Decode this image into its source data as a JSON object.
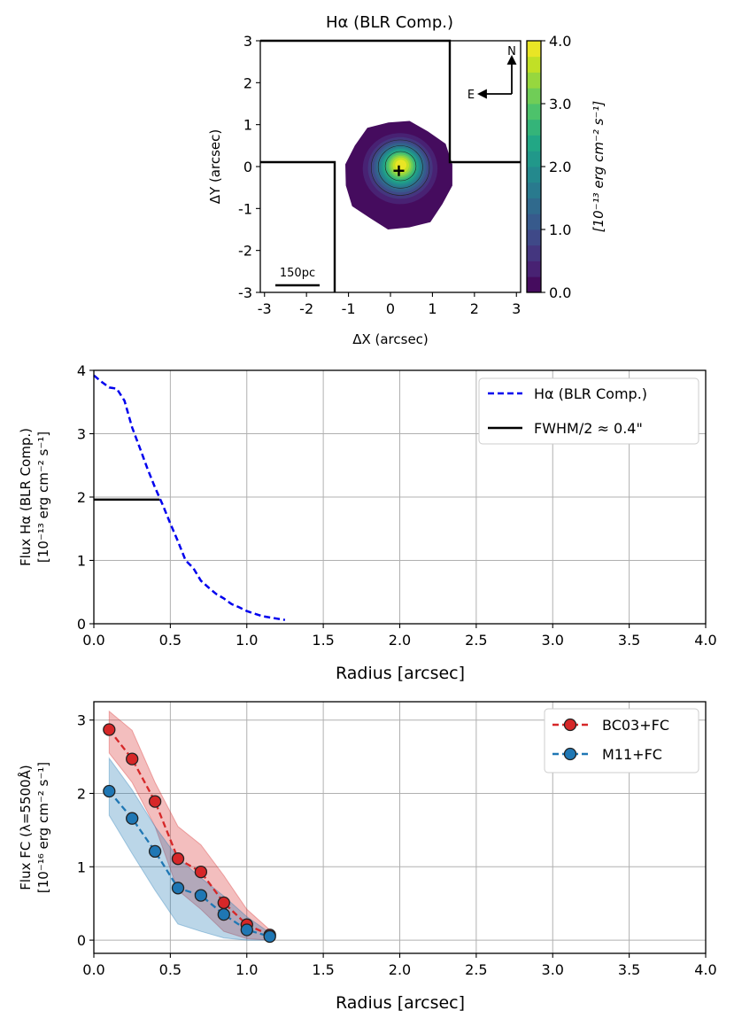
{
  "chart_data": [
    {
      "type": "heatmap",
      "title": "Hα (BLR Comp.)",
      "xlabel": "ΔX (arcsec)",
      "ylabel": "ΔY (arcsec)",
      "xlim": [
        -3.1,
        3.1
      ],
      "ylim": [
        -3,
        3
      ],
      "xticks": [
        "-3",
        "-2",
        "-1",
        "0",
        "1",
        "2",
        "3"
      ],
      "yticks": [
        "-3",
        "-2",
        "-1",
        "0",
        "1",
        "2",
        "3"
      ],
      "colorbar": {
        "label": "[10⁻¹³ erg cm⁻² s⁻¹]",
        "range": [
          0.0,
          4.0
        ],
        "ticks": [
          "0.0",
          "1.0",
          "2.0",
          "3.0",
          "4.0"
        ],
        "levels": 16
      },
      "peak": {
        "x": 0.25,
        "y": 0.05,
        "value": 4.0
      },
      "center_marker": {
        "x": 0.2,
        "y": -0.1
      },
      "compass": {
        "north": "N",
        "east": "E"
      },
      "scale_bar": {
        "label": "150pc"
      },
      "colors": {
        "viridis": [
          "#440154",
          "#482475",
          "#414487",
          "#355f8d",
          "#2a788e",
          "#21908d",
          "#22a884",
          "#42be71",
          "#7ad151",
          "#bddf26",
          "#fde725"
        ]
      }
    },
    {
      "type": "line",
      "xlabel": "Radius [arcsec]",
      "ylabel_line1": "Flux Hα (BLR Comp.)",
      "ylabel_line2": "[10⁻¹³ erg cm⁻² s⁻¹]",
      "xlim": [
        0.0,
        4.0
      ],
      "ylim": [
        0,
        4
      ],
      "xticks": [
        "0.0",
        "0.5",
        "1.0",
        "1.5",
        "2.0",
        "2.5",
        "3.0",
        "3.5",
        "4.0"
      ],
      "yticks": [
        "0",
        "1",
        "2",
        "3",
        "4"
      ],
      "grid": true,
      "legend_position": "top-right",
      "series": [
        {
          "name": "Hα (BLR Comp.)",
          "color": "#0000ee",
          "style": "dashed",
          "x": [
            0.0,
            0.05,
            0.1,
            0.15,
            0.2,
            0.25,
            0.3,
            0.35,
            0.4,
            0.45,
            0.5,
            0.55,
            0.6,
            0.65,
            0.7,
            0.75,
            0.8,
            0.85,
            0.9,
            0.95,
            1.0,
            1.05,
            1.1,
            1.15,
            1.2,
            1.25
          ],
          "y": [
            3.92,
            3.82,
            3.73,
            3.71,
            3.52,
            3.1,
            2.78,
            2.45,
            2.15,
            1.88,
            1.58,
            1.3,
            1.0,
            0.88,
            0.68,
            0.57,
            0.47,
            0.4,
            0.31,
            0.26,
            0.2,
            0.16,
            0.12,
            0.1,
            0.08,
            0.06
          ]
        },
        {
          "name": "FWHM/2 ≈ 0.4\"",
          "color": "#000000",
          "style": "solid",
          "x": [
            0.0,
            0.43
          ],
          "y": [
            1.96,
            1.96
          ]
        }
      ]
    },
    {
      "type": "line",
      "xlabel": "Radius [arcsec]",
      "ylabel_line1": "Flux FC (λ=5500Å)",
      "ylabel_line2": "[10⁻¹⁶ erg cm⁻² s⁻¹]",
      "xlim": [
        0.0,
        4.0
      ],
      "ylim": [
        -0.18,
        3.25
      ],
      "xticks": [
        "0.0",
        "0.5",
        "1.0",
        "1.5",
        "2.0",
        "2.5",
        "3.0",
        "3.5",
        "4.0"
      ],
      "yticks": [
        "0",
        "1",
        "2",
        "3"
      ],
      "grid": true,
      "legend_position": "top-right",
      "series": [
        {
          "name": "BC03+FC",
          "color": "#d62728",
          "style": "dashed-markers",
          "x": [
            0.1,
            0.25,
            0.4,
            0.55,
            0.7,
            0.85,
            1.0,
            1.15
          ],
          "y": [
            2.87,
            2.47,
            1.89,
            1.11,
            0.93,
            0.51,
            0.21,
            0.07
          ],
          "upper": [
            3.12,
            2.86,
            2.15,
            1.55,
            1.3,
            0.88,
            0.42,
            0.14
          ],
          "lower": [
            2.55,
            2.15,
            1.55,
            0.68,
            0.42,
            0.12,
            0.02,
            0.0
          ]
        },
        {
          "name": "M11+FC",
          "color": "#1f77b4",
          "style": "dashed-markers",
          "x": [
            0.1,
            0.25,
            0.4,
            0.55,
            0.7,
            0.85,
            1.0,
            1.15
          ],
          "y": [
            2.03,
            1.66,
            1.21,
            0.71,
            0.61,
            0.35,
            0.14,
            0.05
          ],
          "upper": [
            2.48,
            2.05,
            1.55,
            1.12,
            0.85,
            0.6,
            0.32,
            0.1
          ],
          "lower": [
            1.7,
            1.18,
            0.68,
            0.22,
            0.12,
            0.03,
            0.0,
            0.0
          ]
        }
      ]
    }
  ]
}
